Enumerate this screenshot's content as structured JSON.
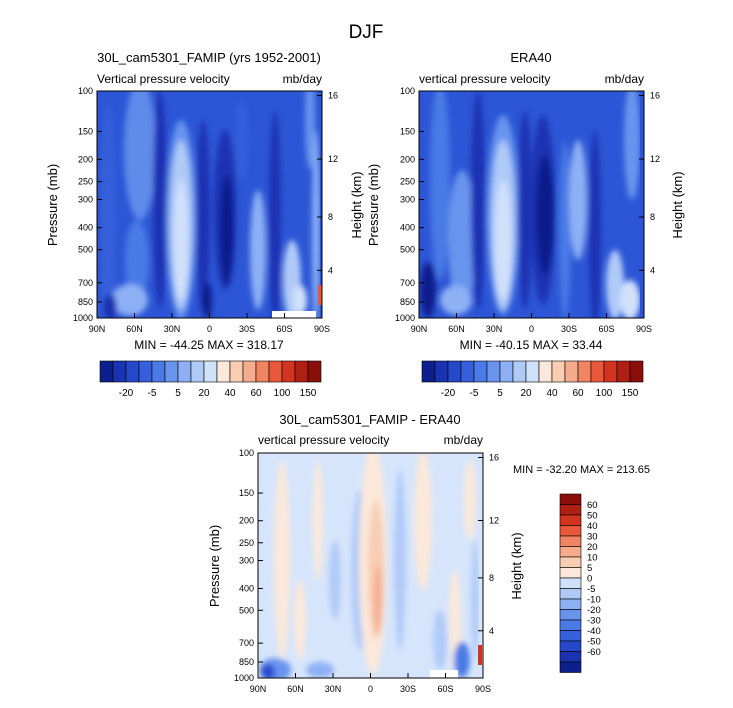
{
  "title": "DJF",
  "colors": {
    "cb1": [
      "#0d1f8c",
      "#1a33b3",
      "#2649cc",
      "#355fdb",
      "#4a7ae6",
      "#6894ee",
      "#8db0f5",
      "#b0caf8",
      "#d0e1fa",
      "#fbe8da",
      "#f8cdb2",
      "#f5ab8c",
      "#f18462",
      "#e9583a",
      "#d23420",
      "#b01f14",
      "#8a0f0b"
    ],
    "cb2": [
      "#0d1f8c",
      "#1a33b3",
      "#2649cc",
      "#355fdb",
      "#4a7ae6",
      "#6894ee",
      "#8db0f5",
      "#b0caf8",
      "#d0e1fa",
      "#fbe8da",
      "#f8cdb2",
      "#f5ab8c",
      "#f18462",
      "#e9583a",
      "#d23420",
      "#b01f14",
      "#8a0f0b"
    ]
  },
  "chart_data": [
    {
      "type": "heatmap",
      "title": "30L_cam5301_FAMIP (yrs 1952-2001)",
      "left_label": "Vertical pressure velocity",
      "right_label": "mb/day",
      "ylabel": "Pressure (mb)",
      "ylabel_right": "Height (km)",
      "x_ticks": [
        "90N",
        "60N",
        "30N",
        "0",
        "30S",
        "60S",
        "90S"
      ],
      "y_ticks": [
        "100",
        "150",
        "200",
        "250",
        "300",
        "400",
        "500",
        "700",
        "850",
        "1000"
      ],
      "y_right_ticks": [
        "16",
        "12",
        "8",
        "4"
      ],
      "stats": "MIN = -44.25  MAX = 318.17",
      "colorbar_labels": [
        "-20",
        "-5",
        "5",
        "20",
        "40",
        "60",
        "100",
        "150"
      ]
    },
    {
      "type": "heatmap",
      "title": "ERA40",
      "left_label": "vertical pressure velocity",
      "right_label": "mb/day",
      "ylabel": "Pressure (mb)",
      "ylabel_right": "Height (km)",
      "x_ticks": [
        "90N",
        "60N",
        "30N",
        "0",
        "30S",
        "60S",
        "90S"
      ],
      "y_ticks": [
        "100",
        "150",
        "200",
        "250",
        "300",
        "400",
        "500",
        "700",
        "850",
        "1000"
      ],
      "y_right_ticks": [
        "16",
        "12",
        "8",
        "4"
      ],
      "stats": "MIN = -40.15  MAX =  33.44",
      "colorbar_labels": [
        "-20",
        "-5",
        "5",
        "20",
        "40",
        "60",
        "100",
        "150"
      ]
    },
    {
      "type": "heatmap",
      "title": "30L_cam5301_FAMIP - ERA40",
      "left_label": "vertical pressure velocity",
      "right_label": "mb/day",
      "ylabel": "Pressure (mb)",
      "ylabel_right": "Height (km)",
      "x_ticks": [
        "90N",
        "60N",
        "30N",
        "0",
        "30S",
        "60S",
        "90S"
      ],
      "y_ticks": [
        "100",
        "150",
        "200",
        "250",
        "300",
        "400",
        "500",
        "700",
        "850",
        "1000"
      ],
      "y_right_ticks": [
        "16",
        "12",
        "8",
        "4"
      ],
      "stats": "MIN = -32.20  MAX = 213.65",
      "colorbar_labels": [
        "60",
        "50",
        "40",
        "30",
        "20",
        "10",
        "5",
        "0",
        "-5",
        "-10",
        "-20",
        "-30",
        "-40",
        "-50",
        "-60"
      ]
    }
  ]
}
